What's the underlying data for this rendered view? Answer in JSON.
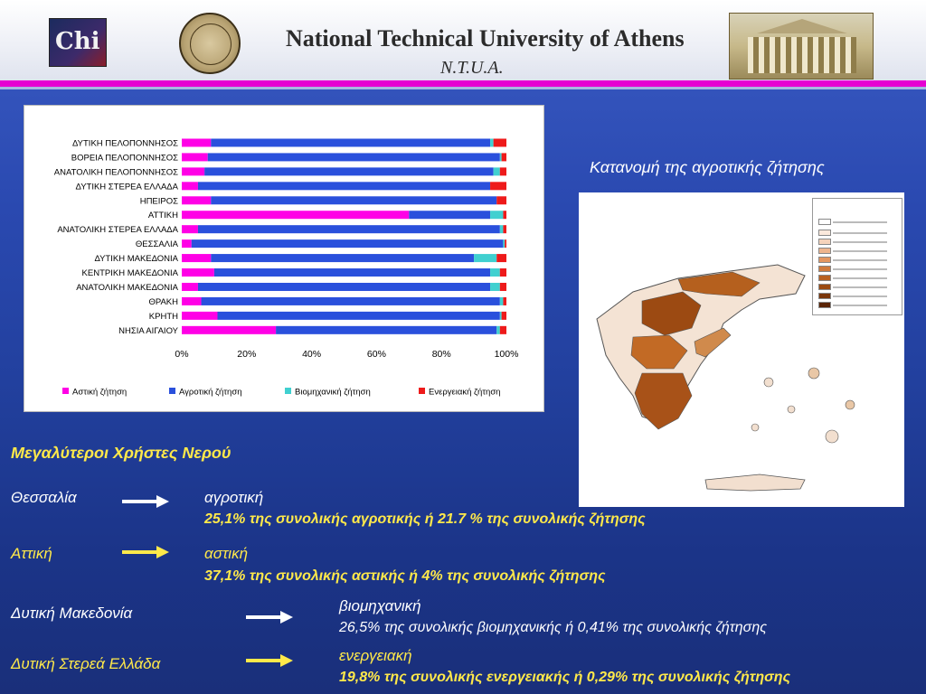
{
  "header": {
    "logo_text": "Chi",
    "title": "National Technical University of Athens",
    "subtitle": "N.T.U.A."
  },
  "map": {
    "title": "Κατανομή της αγροτικής ζήτησης"
  },
  "users": {
    "heading": "Μεγαλύτεροι Χρήστες Νερού",
    "rows": [
      {
        "region": "Θεσσαλία",
        "use": "αγροτική",
        "detail": "25,1% της συνολικής αγροτικής ή 21.7 % της συνολικής ζήτησης"
      },
      {
        "region": "Αττική",
        "use": "αστική",
        "detail": "37,1% της συνολικής αστικής ή 4% της συνολικής ζήτησης"
      },
      {
        "region": "Δυτική Μακεδονία",
        "use": "βιομηχανική",
        "detail": "26,5% της συνολικής βιομηχανικής ή 0,41% της συνολικής ζήτησης"
      },
      {
        "region": "Δυτική Στερεά Ελλάδα",
        "use": "ενεργειακή",
        "detail": "19,8% της συνολικής ενεργειακής ή 0,29% της συνολικής ζήτησης"
      }
    ]
  },
  "colors": {
    "urban": "#ff00e6",
    "agri": "#2a50dc",
    "industry": "#40d0d0",
    "energy": "#ee1a1a",
    "yellow": "#ffe94a",
    "white": "#ffffff"
  },
  "chart_data": {
    "type": "bar",
    "orientation": "horizontal",
    "stacked": true,
    "percent": true,
    "categories": [
      "ΔΥΤΙΚΗ ΠΕΛΟΠΟΝΝΗΣΟΣ",
      "ΒΟΡΕΙΑ ΠΕΛΟΠΟΝΝΗΣΟΣ",
      "ΑΝΑΤΟΛΙΚΗ ΠΕΛΟΠΟΝΝΗΣΟΣ",
      "ΔΥΤΙΚΗ ΣΤΕΡΕΑ ΕΛΛΑΔΑ",
      "ΗΠΕΙΡΟΣ",
      "ΑΤΤΙΚΗ",
      "ΑΝΑΤΟΛΙΚΗ ΣΤΕΡΕΑ ΕΛΛΑΔΑ",
      "ΘΕΣΣΑΛΙΑ",
      "ΔΥΤΙΚΗ ΜΑΚΕΔΟΝΙΑ",
      "ΚΕΝΤΡΙΚΗ ΜΑΚΕΔΟΝΙΑ",
      "ΑΝΑΤΟΛΙΚΗ ΜΑΚΕΔΟΝΙΑ",
      "ΘΡΑΚΗ",
      "ΚΡΗΤΗ",
      "ΝΗΣΙΑ ΑΙΓΑΙΟΥ"
    ],
    "series": [
      {
        "name": "Αστική ζήτηση",
        "color": "#ff00e6",
        "values": [
          9,
          8,
          7,
          5,
          9,
          70,
          5,
          3,
          9,
          10,
          5,
          6,
          11,
          29
        ]
      },
      {
        "name": "Αγροτική ζήτηση",
        "color": "#2a50dc",
        "values": [
          86,
          90,
          89,
          90,
          88,
          25,
          93,
          96,
          81,
          85,
          90,
          92,
          87,
          68
        ]
      },
      {
        "name": "Βιομηχανική ζήτηση",
        "color": "#40d0d0",
        "values": [
          1,
          0.5,
          2,
          0,
          0,
          4,
          1,
          0.5,
          7,
          3,
          3,
          1,
          0.5,
          1
        ]
      },
      {
        "name": "Ενεργειακή ζήτηση",
        "color": "#ee1a1a",
        "values": [
          4,
          1.5,
          2,
          5,
          3,
          1,
          1,
          0.5,
          3,
          2,
          2,
          1,
          1.5,
          2
        ]
      }
    ],
    "x_ticks": [
      "0%",
      "20%",
      "40%",
      "60%",
      "80%",
      "100%"
    ],
    "xlim": [
      0,
      100
    ],
    "grid": false,
    "legend_position": "bottom"
  }
}
